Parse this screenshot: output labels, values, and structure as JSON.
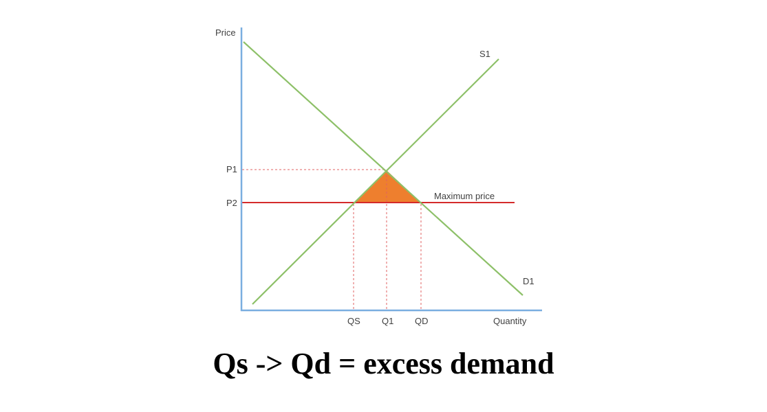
{
  "diagram": {
    "axes": {
      "y_label": "Price",
      "x_label": "Quantity"
    },
    "curves": {
      "supply_label": "S1",
      "demand_label": "D1",
      "max_price_label": "Maximum price"
    },
    "price_ticks": {
      "p1": "P1",
      "p2": "P2"
    },
    "quantity_ticks": {
      "qs": "QS",
      "q1": "Q1",
      "qd": "QD"
    },
    "colors": {
      "axis": "#7aaee0",
      "curve": "#8dc068",
      "max_price_line": "#d42a2a",
      "guide": "#e06060",
      "shortage_fill": "#ee7f2e"
    }
  },
  "caption": "Qs -> Qd = excess demand"
}
